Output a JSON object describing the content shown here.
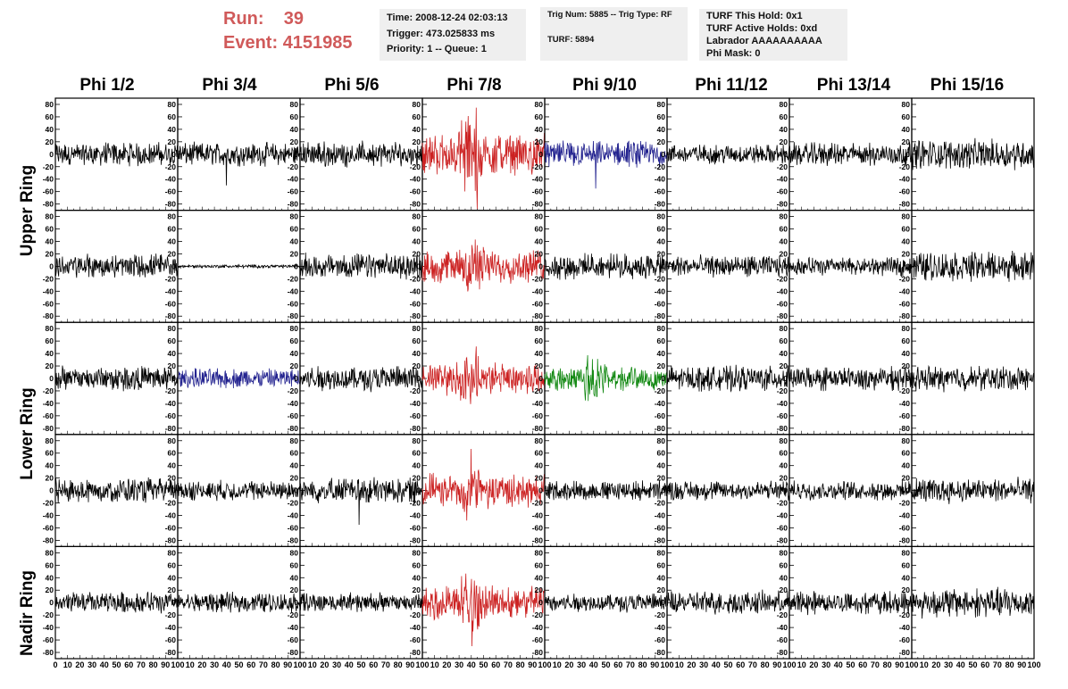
{
  "header": {
    "run_label": "Run:",
    "run_value": "39",
    "event_label": "Event:",
    "event_value": "4151985",
    "time": "Time: 2008-12-24 02:03:13",
    "trigger": "Trigger: 473.025833 ms",
    "priority": "Priority: 1 -- Queue: 1",
    "trig_num": "Trig Num: 5885 -- Trig Type: RF",
    "turf": "TURF: 5894",
    "turf_this_hold": "TURF This Hold: 0x1",
    "turf_active_holds": "TURF Active Holds: 0xd",
    "labrador": "Labrador AAAAAAAAAA",
    "phi_mask": "Phi Mask: 0"
  },
  "chart_data": {
    "type": "line",
    "columns": [
      "Phi 1/2",
      "Phi 3/4",
      "Phi 5/6",
      "Phi 7/8",
      "Phi 9/10",
      "Phi 11/12",
      "Phi 13/14",
      "Phi 15/16"
    ],
    "row_groups": [
      "Upper Ring",
      "Lower Ring",
      "Nadir Ring"
    ],
    "ylim": [
      -90,
      90
    ],
    "yticks": [
      -80,
      -60,
      -40,
      -20,
      0,
      20,
      40,
      60,
      80
    ],
    "xlim": [
      0,
      100
    ],
    "xticks": [
      0,
      10,
      20,
      30,
      40,
      50,
      60,
      70,
      80,
      90,
      100
    ],
    "colors": {
      "default": "#000000",
      "red": "#cc2222",
      "blue": "#22228f",
      "green": "#118811"
    },
    "panels": [
      [
        {
          "color": "default",
          "amp": 14
        },
        {
          "color": "default",
          "amp": 14,
          "spike": -50
        },
        {
          "color": "default",
          "amp": 15
        },
        {
          "color": "red",
          "amp": 24,
          "burst": 70,
          "spike": -90
        },
        {
          "color": "blue",
          "amp": 16,
          "spike": -55
        },
        {
          "color": "default",
          "amp": 12
        },
        {
          "color": "default",
          "amp": 14
        },
        {
          "color": "default",
          "amp": 18
        }
      ],
      [
        {
          "color": "default",
          "amp": 15
        },
        {
          "color": "default",
          "amp": 2
        },
        {
          "color": "default",
          "amp": 15
        },
        {
          "color": "red",
          "amp": 20,
          "burst": 40
        },
        {
          "color": "default",
          "amp": 15
        },
        {
          "color": "default",
          "amp": 13
        },
        {
          "color": "default",
          "amp": 11
        },
        {
          "color": "default",
          "amp": 18
        }
      ],
      [
        {
          "color": "default",
          "amp": 15
        },
        {
          "color": "blue",
          "amp": 12
        },
        {
          "color": "default",
          "amp": 15
        },
        {
          "color": "red",
          "amp": 20,
          "burst": 45
        },
        {
          "color": "green",
          "amp": 14,
          "burst": 38
        },
        {
          "color": "default",
          "amp": 15
        },
        {
          "color": "default",
          "amp": 14
        },
        {
          "color": "default",
          "amp": 15
        }
      ],
      [
        {
          "color": "default",
          "amp": 15
        },
        {
          "color": "default",
          "amp": 12
        },
        {
          "color": "default",
          "amp": 16,
          "spike": -55
        },
        {
          "color": "red",
          "amp": 20,
          "burst": 40
        },
        {
          "color": "default",
          "amp": 12
        },
        {
          "color": "default",
          "amp": 12
        },
        {
          "color": "default",
          "amp": 11
        },
        {
          "color": "default",
          "amp": 15
        }
      ],
      [
        {
          "color": "default",
          "amp": 13
        },
        {
          "color": "default",
          "amp": 12
        },
        {
          "color": "default",
          "amp": 12
        },
        {
          "color": "red",
          "amp": 20,
          "burst": 45,
          "spike": -70
        },
        {
          "color": "default",
          "amp": 11
        },
        {
          "color": "default",
          "amp": 14
        },
        {
          "color": "default",
          "amp": 14
        },
        {
          "color": "default",
          "amp": 18
        }
      ]
    ]
  }
}
